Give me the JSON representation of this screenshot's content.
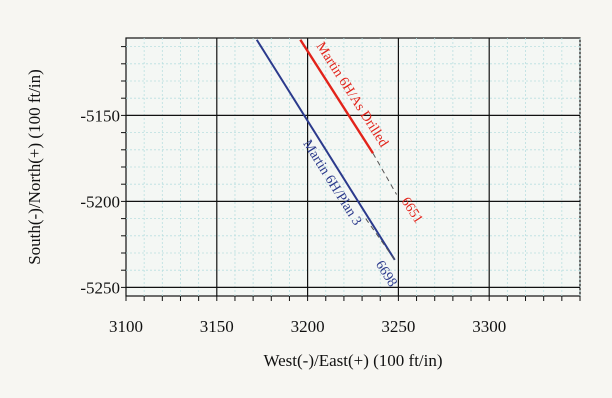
{
  "chart_data": {
    "type": "line",
    "xlabel": "West(-)/East(+) (100 ft/in)",
    "ylabel": "South(-)/North(+) (100 ft/in)",
    "xlim": [
      3100,
      3350
    ],
    "ylim": [
      -5255,
      -5105
    ],
    "x_ticks": [
      3100,
      3150,
      3200,
      3250,
      3300
    ],
    "x_tick_labels": [
      "3100",
      "3150",
      "3200",
      "3250",
      "3300"
    ],
    "y_ticks": [
      -5150,
      -5200,
      -5250
    ],
    "y_tick_labels": [
      "-5150",
      "-5200",
      "-5250"
    ],
    "grid": true,
    "legend": "none",
    "series": [
      {
        "name": "Martin 6H/As Drilled",
        "color": "#e2231a",
        "x": [
          3196,
          3236
        ],
        "y": [
          -5106,
          -5172
        ],
        "projection": {
          "x": [
            3236,
            3249
          ],
          "y": [
            -5172,
            -5196
          ]
        },
        "end_label": "6651"
      },
      {
        "name": "Martin 6H/Plan 3",
        "color": "#2b3a8c",
        "x": [
          3172,
          3248
        ],
        "y": [
          -5106,
          -5234
        ],
        "projection": {
          "x": [
            3232,
            3248
          ],
          "y": [
            -5210,
            -5234
          ]
        },
        "end_label": "6698"
      }
    ]
  }
}
